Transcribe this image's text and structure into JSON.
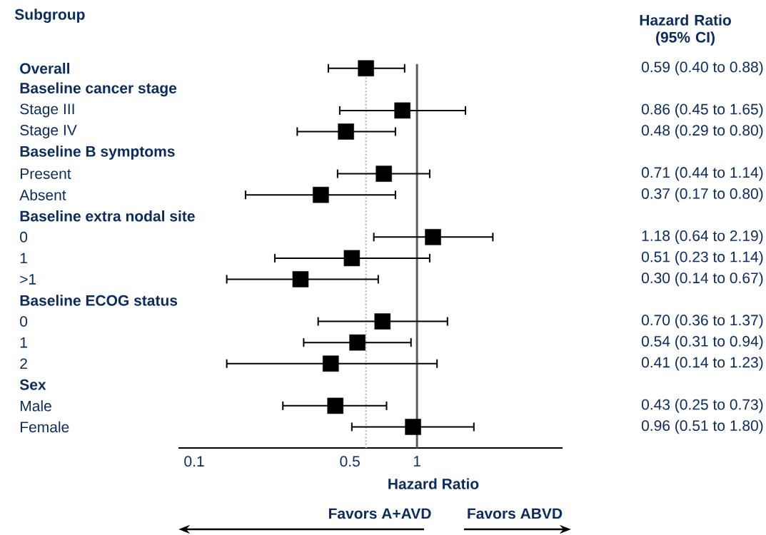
{
  "chart_data": {
    "type": "scatter",
    "orientation": "horizontal",
    "title": null,
    "ylabel": "Subgroup",
    "xlabel": "Hazard Ratio",
    "categories": [
      "Overall",
      "Baseline cancer stage",
      "Stage III",
      "Stage IV",
      "Baseline B symptoms",
      "Present",
      "Absent",
      "Baseline extra nodal site",
      "0",
      "1",
      ">1",
      "Baseline ECOG status",
      "0",
      "1",
      "2",
      "Sex",
      "Male",
      "Female"
    ],
    "values": [
      0.59,
      null,
      0.86,
      0.48,
      null,
      0.71,
      0.37,
      null,
      1.18,
      0.51,
      0.3,
      null,
      0.7,
      0.54,
      0.41,
      null,
      0.43,
      0.96
    ],
    "errors": [
      [
        0.4,
        0.88
      ],
      null,
      [
        0.45,
        1.65
      ],
      [
        0.29,
        0.8
      ],
      null,
      [
        0.44,
        1.14
      ],
      [
        0.17,
        0.8
      ],
      null,
      [
        0.64,
        2.19
      ],
      [
        0.23,
        1.14
      ],
      [
        0.14,
        0.67
      ],
      null,
      [
        0.36,
        1.37
      ],
      [
        0.31,
        0.94
      ],
      [
        0.14,
        1.23
      ],
      null,
      [
        0.25,
        0.73
      ],
      [
        0.51,
        1.8
      ]
    ],
    "value_labels": [
      "0.59 (0.40 to 0.88)",
      null,
      "0.86 (0.45 to 1.65)",
      "0.48 (0.29 to 0.80)",
      null,
      "0.71 (0.44 to 1.14)",
      "0.37 (0.17 to 0.80)",
      null,
      "1.18 (0.64 to 2.19)",
      "0.51 (0.23 to 1.14)",
      "0.30 (0.14 to 0.67)",
      null,
      "0.70 (0.36 to 1.37)",
      "0.54 (0.31 to 0.94)",
      "0.41 (0.14 to 1.23)",
      null,
      "0.43 (0.25 to 0.73)",
      "0.96 (0.51 to 1.80)"
    ],
    "color": "#000000",
    "marker": "square",
    "log": "x",
    "xlim": [
      0.085,
      4.5
    ],
    "xticks": [
      0.1,
      0.5,
      1
    ],
    "grid": false,
    "legend": false,
    "ref_lines": [
      {
        "axis": "x",
        "value": 1,
        "color": "#595959",
        "line_style": "solid"
      },
      {
        "axis": "x",
        "value": 0.59,
        "color": "#b0b0b0",
        "line_style": "dotted"
      }
    ],
    "annotations": [
      "Hazard Ratio (95% CI)",
      "Favors A+AVD",
      "Favors ABVD"
    ]
  }
}
